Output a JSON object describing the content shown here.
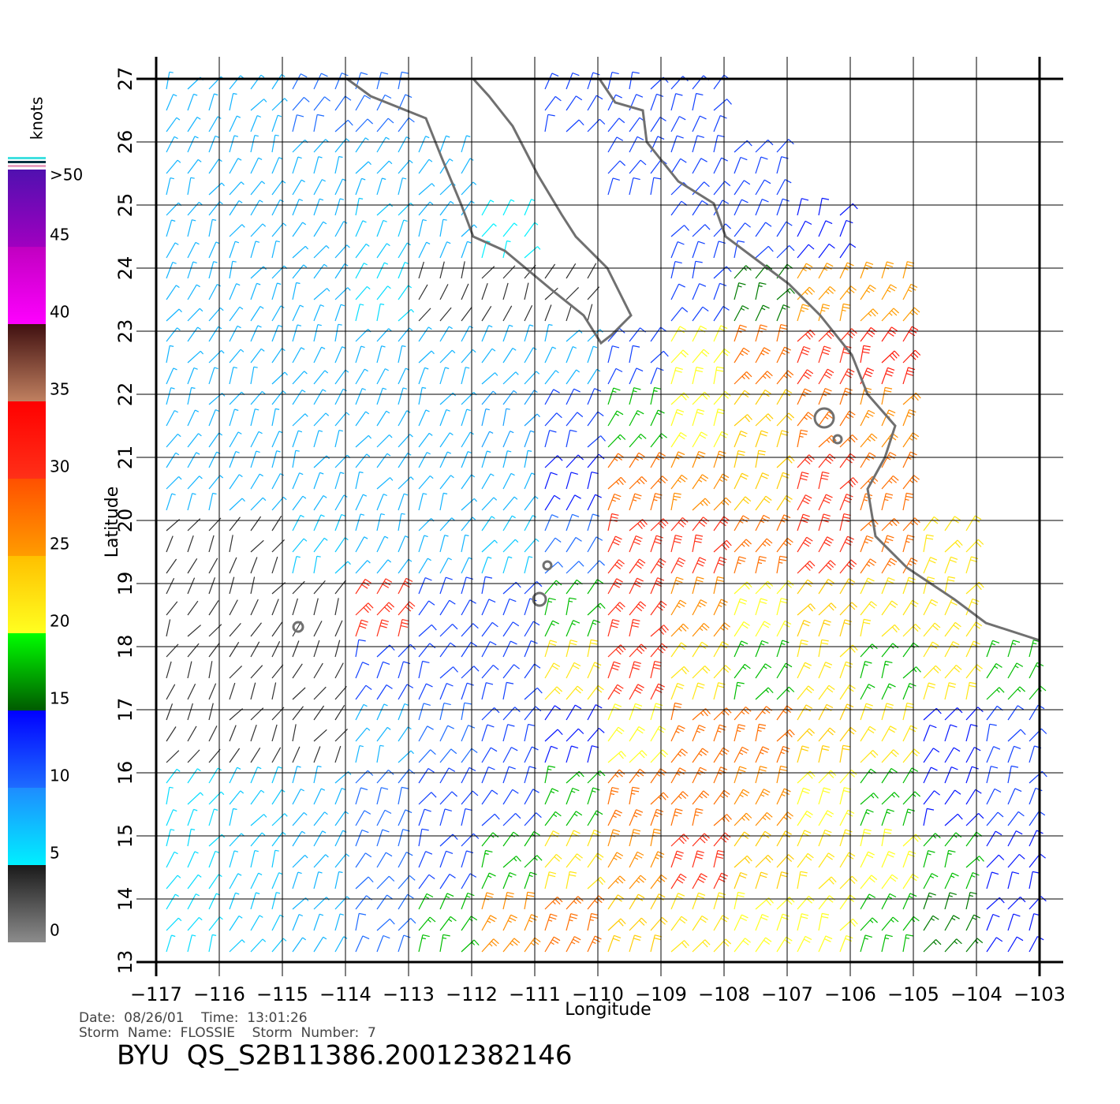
{
  "chart_data": {
    "type": "wind-barb-map",
    "x_label": "Longitude",
    "y_label": "Latitude",
    "xlim": [
      -117,
      -103
    ],
    "ylim": [
      13,
      27
    ],
    "xticks": [
      {
        "value": -117,
        "label": "−117"
      },
      {
        "value": -116,
        "label": "−116"
      },
      {
        "value": -115,
        "label": "−115"
      },
      {
        "value": -114,
        "label": "−114"
      },
      {
        "value": -113,
        "label": "−113"
      },
      {
        "value": -112,
        "label": "−112"
      },
      {
        "value": -111,
        "label": "−111"
      },
      {
        "value": -110,
        "label": "−110"
      },
      {
        "value": -109,
        "label": "−109"
      },
      {
        "value": -108,
        "label": "−108"
      },
      {
        "value": -107,
        "label": "−107"
      },
      {
        "value": -106,
        "label": "−106"
      },
      {
        "value": -105,
        "label": "−105"
      },
      {
        "value": -104,
        "label": "−104"
      },
      {
        "value": -103,
        "label": "−103"
      }
    ],
    "yticks": [
      13,
      14,
      15,
      16,
      17,
      18,
      19,
      20,
      21,
      22,
      23,
      24,
      25,
      26,
      27
    ],
    "grid": true,
    "colorbar": {
      "title": "knots",
      "lim": [
        0,
        50
      ],
      "ticks": [
        0,
        5,
        10,
        15,
        20,
        25,
        30,
        35,
        40,
        45,
        {
          "value": 50,
          "label": ">50"
        }
      ],
      "segments": [
        [
          "#8c8c8c",
          "#1a1a1a"
        ],
        [
          "#00f0ff",
          "#1e8cff"
        ],
        [
          "#1e6cff",
          "#0000ff"
        ],
        [
          "#005a00",
          "#00ff00"
        ],
        [
          "#ffff20",
          "#ffc000"
        ],
        [
          "#ff9c00",
          "#ff5000"
        ],
        [
          "#ff3018",
          "#ff0000"
        ],
        [
          "#c08060",
          "#401010"
        ],
        [
          "#ff00ff",
          "#c000c0"
        ],
        [
          "#a000c0",
          "#5010b0"
        ]
      ]
    },
    "wind_grid": {
      "lat_centers": [
        26.5,
        25.5,
        24.5,
        23.5,
        22.5,
        21.5,
        20.5,
        19.5,
        18.5,
        17.5,
        16.5,
        15.5,
        14.5,
        13.5
      ],
      "lon_centers": [
        -116.5,
        -115.5,
        -114.5,
        -113.5,
        -112.5,
        -111.5,
        -110.5,
        -109.5,
        -108.5,
        -107.5,
        -106.5,
        -105.5,
        -104.5,
        -103.5
      ],
      "speeds": [
        [
          8,
          8,
          10,
          10,
          null,
          null,
          12,
          12,
          12,
          null,
          null,
          null,
          null,
          null
        ],
        [
          8,
          8,
          8,
          8,
          8,
          null,
          null,
          12,
          12,
          12,
          null,
          null,
          null,
          null
        ],
        [
          8,
          8,
          8,
          7,
          8,
          5,
          null,
          null,
          12,
          12,
          14,
          null,
          null,
          null
        ],
        [
          8,
          8,
          8,
          6,
          4,
          4,
          4,
          null,
          12,
          16,
          25,
          25,
          null,
          null
        ],
        [
          8,
          8,
          8,
          8,
          8,
          8,
          8,
          12,
          20,
          28,
          30,
          32,
          null,
          null
        ],
        [
          8,
          8,
          8,
          8,
          8,
          9,
          12,
          18,
          20,
          24,
          28,
          26,
          null,
          null
        ],
        [
          8,
          8,
          8,
          8,
          8,
          8,
          14,
          28,
          26,
          24,
          30,
          28,
          null,
          null
        ],
        [
          4,
          4,
          7,
          8,
          8,
          7,
          10,
          30,
          30,
          28,
          30,
          28,
          22,
          null
        ],
        [
          4,
          4,
          4,
          30,
          12,
          12,
          18,
          30,
          26,
          20,
          24,
          22,
          22,
          null
        ],
        [
          4,
          4,
          4,
          12,
          12,
          12,
          22,
          30,
          22,
          18,
          22,
          18,
          22,
          18
        ],
        [
          4,
          4,
          4,
          8,
          10,
          12,
          14,
          20,
          28,
          28,
          24,
          22,
          14,
          12
        ],
        [
          6,
          7,
          8,
          10,
          12,
          12,
          18,
          28,
          28,
          26,
          20,
          18,
          14,
          12
        ],
        [
          6,
          7,
          8,
          10,
          12,
          18,
          22,
          26,
          30,
          24,
          22,
          20,
          18,
          14
        ],
        [
          6,
          7,
          8,
          10,
          18,
          26,
          28,
          24,
          22,
          20,
          20,
          18,
          16,
          14
        ]
      ]
    }
  },
  "footer": {
    "date_line": "Date:  08/26/01    Time:  13:01:26",
    "storm_line": "Storm  Name:  FLOSSIE    Storm  Number:  7",
    "product_id": "BYU  QS_S2B11386.20012382146"
  }
}
